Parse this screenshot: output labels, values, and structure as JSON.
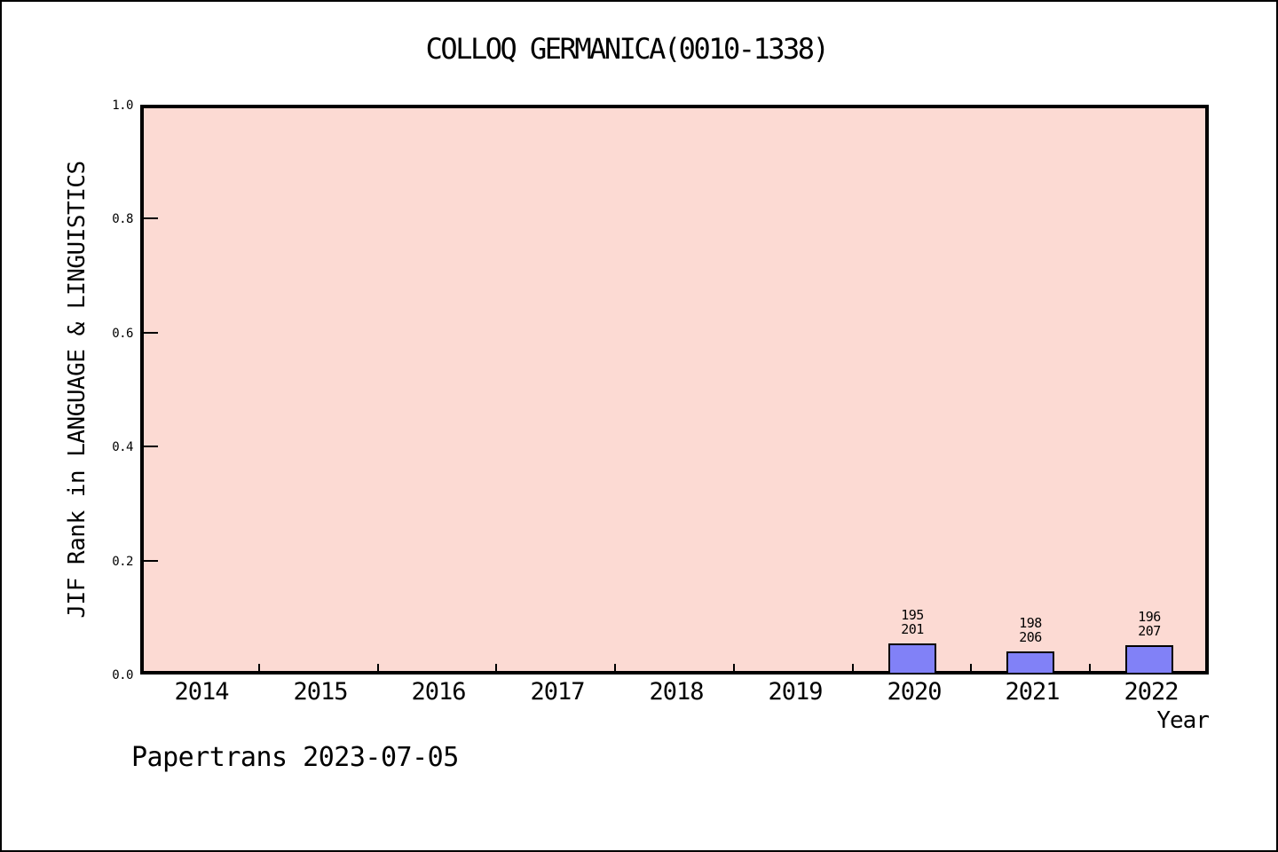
{
  "footer": {
    "text": "Papertrans 2023-07-05"
  },
  "chart_data": {
    "type": "bar",
    "title": "COLLOQ GERMANICA(0010-1338)",
    "xlabel": "Year",
    "ylabel": "JIF Rank in LANGUAGE & LINGUISTICS",
    "categories": [
      "2014",
      "2015",
      "2016",
      "2017",
      "2018",
      "2019",
      "2020",
      "2021",
      "2022"
    ],
    "y_ticks": [
      0.0,
      0.2,
      0.4,
      0.6,
      0.8,
      1.0
    ],
    "ylim": [
      0.0,
      1.0
    ],
    "grid": false,
    "legend_position": "none",
    "plot_bg_color": "#fcdad3",
    "bar_color": "#8181f7",
    "bars": [
      {
        "category": "2020",
        "value": 0.055,
        "rank": 195,
        "total": 201,
        "label_lines": [
          "195",
          "201"
        ]
      },
      {
        "category": "2021",
        "value": 0.04,
        "rank": 198,
        "total": 206,
        "label_lines": [
          "198",
          "206"
        ]
      },
      {
        "category": "2022",
        "value": 0.052,
        "rank": 196,
        "total": 207,
        "label_lines": [
          "196",
          "207"
        ]
      }
    ]
  }
}
